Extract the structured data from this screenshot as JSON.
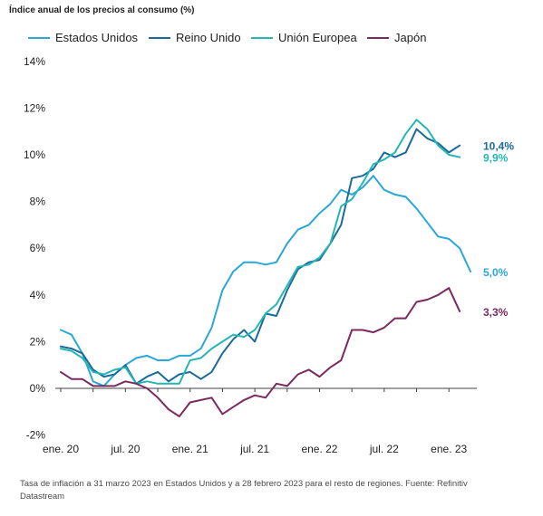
{
  "title": "Índice anual de los precios al consumo (%)",
  "footnote": "Tasa de inflación a 31 marzo 2023 en Estados Unidos y a 28 febrero 2023 para el resto de regiones. Fuente: Refinitiv Datastream",
  "legend": [
    {
      "name": "Estados Unidos",
      "color": "#2aa6d8"
    },
    {
      "name": "Reino Unido",
      "color": "#1b6a9a"
    },
    {
      "name": "Unión Europea",
      "color": "#26b5b5"
    },
    {
      "name": "Japón",
      "color": "#7a2a60"
    }
  ],
  "chart_data": {
    "type": "line",
    "title": "Índice anual de los precios al consumo (%)",
    "xlabel": "",
    "ylabel": "",
    "x": [
      "2020-01",
      "2020-02",
      "2020-03",
      "2020-04",
      "2020-05",
      "2020-06",
      "2020-07",
      "2020-08",
      "2020-09",
      "2020-10",
      "2020-11",
      "2020-12",
      "2021-01",
      "2021-02",
      "2021-03",
      "2021-04",
      "2021-05",
      "2021-06",
      "2021-07",
      "2021-08",
      "2021-09",
      "2021-10",
      "2021-11",
      "2021-12",
      "2022-01",
      "2022-02",
      "2022-03",
      "2022-04",
      "2022-05",
      "2022-06",
      "2022-07",
      "2022-08",
      "2022-09",
      "2022-10",
      "2022-11",
      "2022-12",
      "2023-01",
      "2023-02",
      "2023-03"
    ],
    "xticks": [
      "ene. 20",
      "jul. 20",
      "ene. 21",
      "jul. 21",
      "ene. 22",
      "jul. 22",
      "ene. 23"
    ],
    "yticks": [
      "-2%",
      "0%",
      "2%",
      "4%",
      "6%",
      "8%",
      "10%",
      "12%",
      "14%"
    ],
    "ylim": [
      -2,
      14
    ],
    "grid": false,
    "legend_position": "top",
    "series": [
      {
        "name": "Estados Unidos",
        "color": "#2aa6d8",
        "end_label": "5,0%",
        "values": [
          2.5,
          2.3,
          1.5,
          0.3,
          0.1,
          0.6,
          1.0,
          1.3,
          1.4,
          1.2,
          1.2,
          1.4,
          1.4,
          1.7,
          2.6,
          4.2,
          5.0,
          5.4,
          5.4,
          5.3,
          5.4,
          6.2,
          6.8,
          7.0,
          7.5,
          7.9,
          8.5,
          8.3,
          8.6,
          9.1,
          8.5,
          8.3,
          8.2,
          7.7,
          7.1,
          6.5,
          6.4,
          6.0,
          5.0
        ]
      },
      {
        "name": "Reino Unido",
        "color": "#1b6a9a",
        "end_label": "10,4%",
        "values": [
          1.8,
          1.7,
          1.5,
          0.8,
          0.5,
          0.6,
          1.0,
          0.2,
          0.5,
          0.7,
          0.3,
          0.6,
          0.7,
          0.4,
          0.7,
          1.5,
          2.1,
          2.5,
          2.0,
          3.2,
          3.1,
          4.2,
          5.1,
          5.4,
          5.5,
          6.2,
          7.0,
          9.0,
          9.1,
          9.4,
          10.1,
          9.9,
          10.1,
          11.1,
          10.7,
          10.5,
          10.1,
          10.4,
          null
        ]
      },
      {
        "name": "Unión Europea",
        "color": "#26b5b5",
        "end_label": "9,9%",
        "values": [
          1.7,
          1.6,
          1.3,
          0.7,
          0.6,
          0.8,
          0.9,
          0.2,
          0.3,
          0.2,
          0.2,
          0.2,
          1.2,
          1.3,
          1.7,
          2.0,
          2.3,
          2.2,
          2.5,
          3.2,
          3.6,
          4.4,
          5.2,
          5.3,
          5.6,
          6.2,
          7.8,
          8.1,
          8.8,
          9.6,
          9.8,
          10.1,
          10.9,
          11.5,
          11.1,
          10.4,
          10.0,
          9.9,
          null
        ]
      },
      {
        "name": "Japón",
        "color": "#7a2a60",
        "end_label": "3,3%",
        "values": [
          0.7,
          0.4,
          0.4,
          0.1,
          0.1,
          0.1,
          0.3,
          0.2,
          0.0,
          -0.4,
          -0.9,
          -1.2,
          -0.6,
          -0.5,
          -0.4,
          -1.1,
          -0.8,
          -0.5,
          -0.3,
          -0.4,
          0.2,
          0.1,
          0.6,
          0.8,
          0.5,
          0.9,
          1.2,
          2.5,
          2.5,
          2.4,
          2.6,
          3.0,
          3.0,
          3.7,
          3.8,
          4.0,
          4.3,
          3.3,
          null
        ]
      }
    ]
  }
}
